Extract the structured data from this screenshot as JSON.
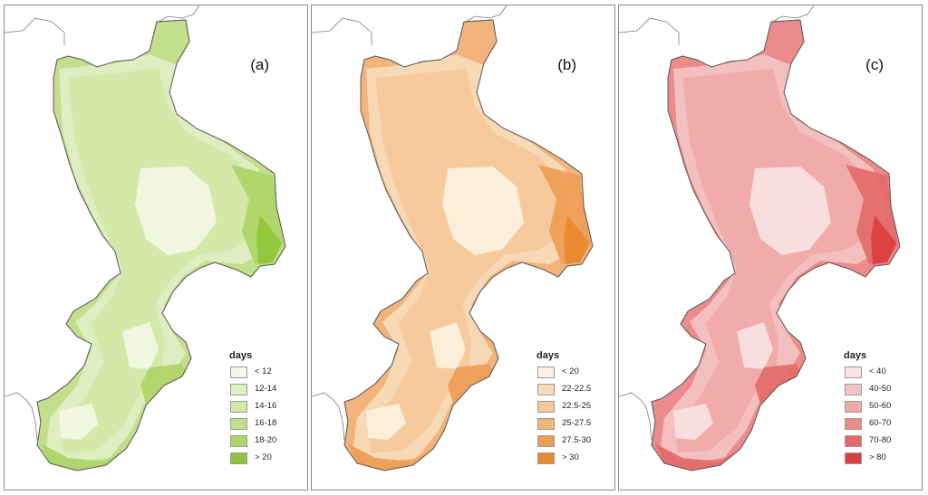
{
  "panels": [
    {
      "label": "(a)",
      "legend_title": "days",
      "classes": [
        "< 12",
        "12-14",
        "14-16",
        "16-18",
        "18-20",
        "> 20"
      ],
      "colors": [
        "#f3f7e4",
        "#e1efc4",
        "#d2e7a8",
        "#c3df8c",
        "#afd467",
        "#8fc53a"
      ]
    },
    {
      "label": "(b)",
      "legend_title": "days",
      "classes": [
        "< 20",
        "22-22.5",
        "22.5-25",
        "25-27.5",
        "27.5-30",
        "> 30"
      ],
      "colors": [
        "#fbf1e0",
        "#f8dcba",
        "#f5c99a",
        "#f2b47a",
        "#ee9d55",
        "#e9892f"
      ]
    },
    {
      "label": "(c)",
      "legend_title": "days",
      "classes": [
        "< 40",
        "40-50",
        "50-60",
        "60-70",
        "70-80",
        "> 80"
      ],
      "colors": [
        "#f9e2e2",
        "#f4c3c3",
        "#f0a9a9",
        "#eb8b8b",
        "#e46a6a",
        "#dc3f3f"
      ]
    }
  ]
}
